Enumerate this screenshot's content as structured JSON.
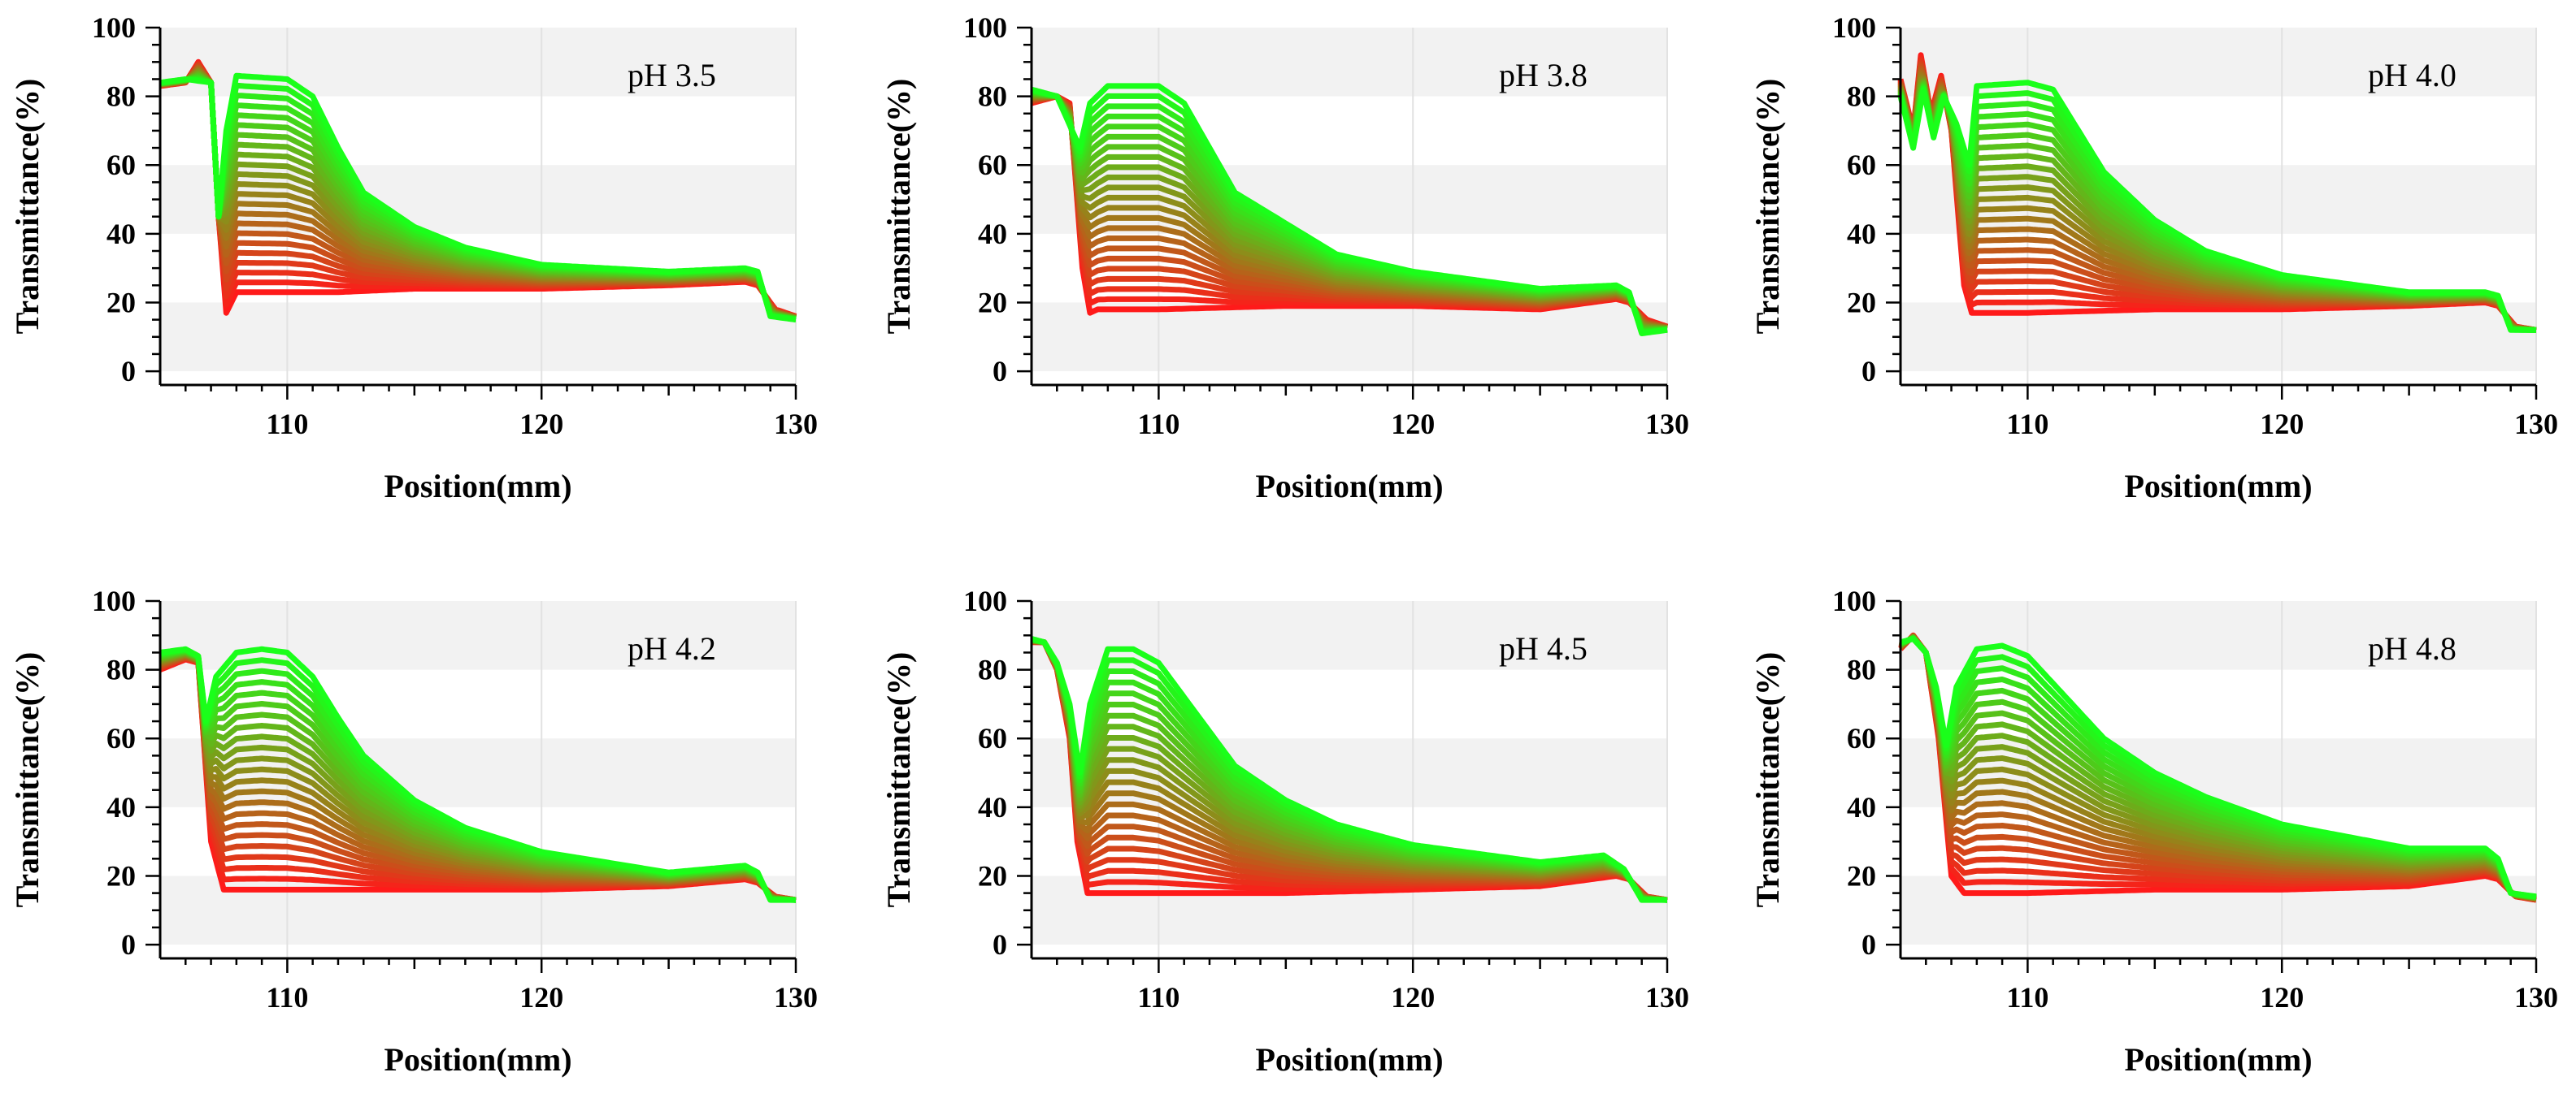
{
  "colors": {
    "early": "#ff1a1a",
    "late": "#1aff1a",
    "band_shade": "#f2f2f2",
    "grid": "#e2e2e2",
    "axis": "#000000"
  },
  "chart_data": [
    {
      "type": "line",
      "annotation": "pH 3.5",
      "xlabel": "Position(mm)",
      "ylabel": "Transmittance(%)",
      "xlim": [
        105,
        130
      ],
      "ylim": [
        -4,
        100
      ],
      "xticks": [
        110,
        120,
        130
      ],
      "yticks": [
        0,
        20,
        40,
        60,
        80,
        100
      ],
      "grid": true,
      "series": [
        {
          "name": "early (red)",
          "x": [
            105,
            106,
            106.5,
            107,
            107.3,
            107.6,
            108,
            110,
            112,
            115,
            120,
            125,
            128,
            128.5,
            129.2,
            130
          ],
          "y": [
            83,
            84,
            90,
            84,
            45,
            17,
            23,
            23,
            23,
            24,
            24,
            25,
            26,
            25,
            18,
            16
          ]
        },
        {
          "name": "late (green)",
          "x": [
            105,
            106,
            107,
            107.3,
            107.6,
            108,
            110,
            111,
            112,
            113,
            115,
            117,
            120,
            125,
            128,
            128.5,
            129,
            130
          ],
          "y": [
            84,
            85,
            84,
            45,
            70,
            86,
            85,
            80,
            65,
            52,
            42,
            36,
            31,
            29,
            30,
            29,
            16,
            15
          ]
        }
      ]
    },
    {
      "type": "line",
      "annotation": "pH 3.8",
      "xlabel": "Position(mm)",
      "ylabel": "Transmittance(%)",
      "xlim": [
        105,
        130
      ],
      "ylim": [
        -4,
        100
      ],
      "xticks": [
        110,
        120,
        130
      ],
      "yticks": [
        0,
        20,
        40,
        60,
        80,
        100
      ],
      "grid": true,
      "series": [
        {
          "name": "early (red)",
          "x": [
            105,
            106,
            106.5,
            107,
            107.3,
            107.6,
            108,
            110,
            115,
            120,
            125,
            128,
            128.5,
            129.2,
            130
          ],
          "y": [
            78,
            80,
            78,
            30,
            17,
            18,
            18,
            18,
            19,
            19,
            18,
            21,
            20,
            15,
            13
          ]
        },
        {
          "name": "late (green)",
          "x": [
            105,
            106,
            106.6,
            106.9,
            107.3,
            108,
            110,
            111,
            112,
            113,
            115,
            117,
            120,
            125,
            128,
            128.5,
            129,
            130
          ],
          "y": [
            82,
            80,
            70,
            65,
            78,
            83,
            83,
            78,
            65,
            52,
            43,
            34,
            29,
            24,
            25,
            23,
            11,
            12
          ]
        }
      ]
    },
    {
      "type": "line",
      "annotation": "pH 4.0",
      "xlabel": "Position(mm)",
      "ylabel": "Transmittance(%)",
      "xlim": [
        105,
        130
      ],
      "ylim": [
        -4,
        100
      ],
      "xticks": [
        110,
        120,
        130
      ],
      "yticks": [
        0,
        20,
        40,
        60,
        80,
        100
      ],
      "grid": true,
      "series": [
        {
          "name": "early (red)",
          "x": [
            105,
            105.5,
            105.8,
            106.2,
            106.6,
            107,
            107.5,
            107.8,
            108,
            110,
            115,
            120,
            125,
            128,
            128.5,
            129.2,
            130
          ],
          "y": [
            85,
            70,
            92,
            75,
            86,
            70,
            25,
            17,
            17,
            17,
            18,
            18,
            19,
            20,
            19,
            13,
            12
          ]
        },
        {
          "name": "late (green)",
          "x": [
            105,
            105.5,
            105.9,
            106.3,
            106.7,
            107.2,
            107.7,
            108,
            110,
            111,
            112,
            113,
            115,
            117,
            120,
            125,
            128,
            128.5,
            129,
            130
          ],
          "y": [
            80,
            65,
            82,
            68,
            80,
            72,
            60,
            83,
            84,
            82,
            70,
            58,
            44,
            35,
            28,
            23,
            23,
            22,
            12,
            12
          ]
        }
      ]
    },
    {
      "type": "line",
      "annotation": "pH 4.2",
      "xlabel": "Position(mm)",
      "ylabel": "Transmittance(%)",
      "xlim": [
        105,
        130
      ],
      "ylim": [
        -4,
        100
      ],
      "xticks": [
        110,
        120,
        130
      ],
      "yticks": [
        0,
        20,
        40,
        60,
        80,
        100
      ],
      "grid": true,
      "series": [
        {
          "name": "early (red)",
          "x": [
            105,
            106,
            106.5,
            107,
            107.5,
            108,
            110,
            115,
            120,
            125,
            128,
            128.5,
            129.2,
            130
          ],
          "y": [
            80,
            83,
            82,
            30,
            16,
            16,
            16,
            16,
            16,
            17,
            19,
            18,
            14,
            13
          ]
        },
        {
          "name": "late (green)",
          "x": [
            105,
            106,
            106.5,
            106.8,
            107.2,
            108,
            109,
            110,
            111,
            112,
            113,
            115,
            117,
            120,
            125,
            128,
            128.5,
            129,
            130
          ],
          "y": [
            85,
            86,
            84,
            65,
            78,
            85,
            86,
            85,
            78,
            66,
            55,
            42,
            34,
            27,
            21,
            23,
            21,
            13,
            13
          ]
        }
      ]
    },
    {
      "type": "line",
      "annotation": "pH 4.5",
      "xlabel": "Position(mm)",
      "ylabel": "Transmittance(%)",
      "xlim": [
        105,
        130
      ],
      "ylim": [
        -4,
        100
      ],
      "xticks": [
        110,
        120,
        130
      ],
      "yticks": [
        0,
        20,
        40,
        60,
        80,
        100
      ],
      "grid": true,
      "series": [
        {
          "name": "early (red)",
          "x": [
            105,
            105.5,
            106,
            106.5,
            106.8,
            107.2,
            108,
            110,
            115,
            120,
            125,
            128,
            128.5,
            129.2,
            130
          ],
          "y": [
            88,
            88,
            80,
            60,
            30,
            15,
            15,
            15,
            15,
            16,
            17,
            20,
            19,
            14,
            13
          ]
        },
        {
          "name": "late (green)",
          "x": [
            105,
            105.5,
            106,
            106.5,
            106.9,
            107.3,
            108,
            109,
            110,
            111,
            112,
            113,
            115,
            117,
            120,
            125,
            127.5,
            128.3,
            129,
            130
          ],
          "y": [
            89,
            88,
            82,
            70,
            50,
            70,
            86,
            86,
            82,
            72,
            62,
            52,
            42,
            35,
            29,
            24,
            26,
            22,
            13,
            13
          ]
        }
      ]
    },
    {
      "type": "line",
      "annotation": "pH 4.8",
      "xlabel": "Position(mm)",
      "ylabel": "Transmittance(%)",
      "xlim": [
        105,
        130
      ],
      "ylim": [
        -4,
        100
      ],
      "xticks": [
        110,
        120,
        130
      ],
      "yticks": [
        0,
        20,
        40,
        60,
        80,
        100
      ],
      "grid": true,
      "series": [
        {
          "name": "early (red)",
          "x": [
            105,
            105.5,
            106,
            106.5,
            107,
            107.5,
            108,
            110,
            115,
            120,
            125,
            128,
            128.5,
            129.2,
            130
          ],
          "y": [
            86,
            90,
            85,
            60,
            20,
            15,
            15,
            15,
            16,
            16,
            17,
            20,
            19,
            14,
            13
          ]
        },
        {
          "name": "late (green)",
          "x": [
            105,
            105.5,
            106,
            106.4,
            106.8,
            107.2,
            108,
            109,
            110,
            111,
            112,
            113,
            115,
            117,
            120,
            125,
            128,
            128.5,
            129,
            130
          ],
          "y": [
            88,
            89,
            85,
            75,
            58,
            75,
            86,
            87,
            84,
            76,
            68,
            60,
            50,
            43,
            35,
            28,
            28,
            25,
            15,
            14
          ]
        }
      ]
    }
  ]
}
